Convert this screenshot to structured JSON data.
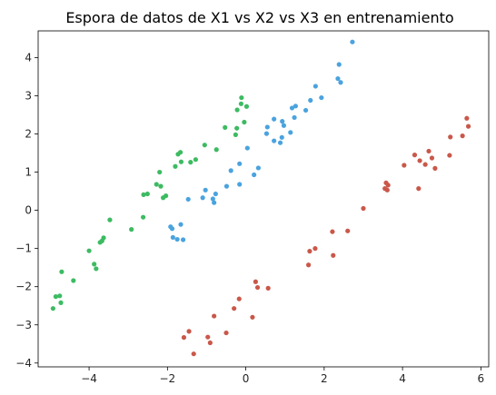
{
  "chart_data": {
    "type": "scatter",
    "title": "Espora de datos de X1 vs X2 vs X3 en entrenamiento",
    "xlabel": "",
    "ylabel": "",
    "xlim": [
      -5.3,
      6.2
    ],
    "ylim": [
      -4.1,
      4.7
    ],
    "xticks": [
      -4,
      -2,
      0,
      2,
      4,
      6
    ],
    "yticks": [
      -4,
      -3,
      -2,
      -1,
      0,
      1,
      2,
      3,
      4
    ],
    "grid": false,
    "legend": "none",
    "series": [
      {
        "color": "#4aa3df",
        "points": [
          [
            2.72,
            4.41
          ],
          [
            2.38,
            3.82
          ],
          [
            2.35,
            3.45
          ],
          [
            2.42,
            3.35
          ],
          [
            1.93,
            2.95
          ],
          [
            1.78,
            3.25
          ],
          [
            1.65,
            2.88
          ],
          [
            1.53,
            2.62
          ],
          [
            1.27,
            2.73
          ],
          [
            1.18,
            2.68
          ],
          [
            1.24,
            2.43
          ],
          [
            0.93,
            2.33
          ],
          [
            0.72,
            2.39
          ],
          [
            0.97,
            2.22
          ],
          [
            1.14,
            2.04
          ],
          [
            0.55,
            2.18
          ],
          [
            0.53,
            2.01
          ],
          [
            0.72,
            1.82
          ],
          [
            0.92,
            1.91
          ],
          [
            0.88,
            1.77
          ],
          [
            0.04,
            1.63
          ],
          [
            0.32,
            1.11
          ],
          [
            0.21,
            0.93
          ],
          [
            -0.16,
            1.22
          ],
          [
            -0.38,
            1.04
          ],
          [
            -0.49,
            0.63
          ],
          [
            -0.16,
            0.68
          ],
          [
            -0.77,
            0.43
          ],
          [
            -0.84,
            0.3
          ],
          [
            -0.81,
            0.2
          ],
          [
            -1.1,
            0.33
          ],
          [
            -1.47,
            0.29
          ],
          [
            -1.03,
            0.53
          ],
          [
            -1.66,
            -0.37
          ],
          [
            -1.92,
            -0.43
          ],
          [
            -1.88,
            -0.48
          ],
          [
            -1.86,
            -0.71
          ],
          [
            -1.75,
            -0.76
          ],
          [
            -1.6,
            -0.77
          ]
        ]
      },
      {
        "color": "#3dbb62",
        "points": [
          [
            -0.11,
            2.95
          ],
          [
            -0.12,
            2.79
          ],
          [
            0.02,
            2.72
          ],
          [
            -0.22,
            2.63
          ],
          [
            -0.53,
            2.17
          ],
          [
            -0.23,
            2.15
          ],
          [
            -0.04,
            2.31
          ],
          [
            -0.26,
            1.98
          ],
          [
            -0.75,
            1.59
          ],
          [
            -1.05,
            1.71
          ],
          [
            -1.28,
            1.33
          ],
          [
            -1.41,
            1.26
          ],
          [
            -1.67,
            1.52
          ],
          [
            -1.73,
            1.47
          ],
          [
            -1.65,
            1.27
          ],
          [
            -1.8,
            1.15
          ],
          [
            -2.2,
            1.0
          ],
          [
            -2.04,
            0.38
          ],
          [
            -2.11,
            0.33
          ],
          [
            -2.28,
            0.68
          ],
          [
            -2.17,
            0.63
          ],
          [
            -2.51,
            0.43
          ],
          [
            -2.62,
            -0.18
          ],
          [
            -2.92,
            -0.5
          ],
          [
            -2.61,
            0.41
          ],
          [
            -3.47,
            -0.25
          ],
          [
            -3.63,
            -0.72
          ],
          [
            -3.72,
            -0.84
          ],
          [
            -3.67,
            -0.8
          ],
          [
            -4.0,
            -1.06
          ],
          [
            -3.87,
            -1.41
          ],
          [
            -3.82,
            -1.53
          ],
          [
            -4.4,
            -1.84
          ],
          [
            -4.7,
            -1.61
          ],
          [
            -4.75,
            -2.24
          ],
          [
            -4.85,
            -2.26
          ],
          [
            -4.72,
            -2.42
          ],
          [
            -4.92,
            -2.57
          ]
        ]
      },
      {
        "color": "#c9584a",
        "points": [
          [
            5.64,
            2.41
          ],
          [
            5.68,
            2.2
          ],
          [
            5.53,
            1.95
          ],
          [
            5.22,
            1.92
          ],
          [
            5.2,
            1.44
          ],
          [
            4.67,
            1.55
          ],
          [
            4.75,
            1.37
          ],
          [
            4.83,
            1.1
          ],
          [
            4.58,
            1.2
          ],
          [
            4.44,
            1.3
          ],
          [
            4.31,
            1.45
          ],
          [
            4.04,
            1.18
          ],
          [
            4.41,
            0.57
          ],
          [
            3.61,
            0.53
          ],
          [
            3.55,
            0.57
          ],
          [
            3.63,
            0.66
          ],
          [
            3.58,
            0.72
          ],
          [
            3.0,
            0.05
          ],
          [
            2.6,
            -0.54
          ],
          [
            2.21,
            -0.56
          ],
          [
            2.23,
            -1.18
          ],
          [
            1.77,
            -1.0
          ],
          [
            1.63,
            -1.07
          ],
          [
            1.6,
            -1.43
          ],
          [
            0.25,
            -1.87
          ],
          [
            0.3,
            -2.02
          ],
          [
            0.57,
            -2.04
          ],
          [
            -0.17,
            -2.32
          ],
          [
            -0.3,
            -2.57
          ],
          [
            0.17,
            -2.8
          ],
          [
            -0.81,
            -2.77
          ],
          [
            -0.5,
            -3.21
          ],
          [
            -1.45,
            -3.17
          ],
          [
            -1.58,
            -3.33
          ],
          [
            -0.97,
            -3.32
          ],
          [
            -0.91,
            -3.47
          ],
          [
            -1.33,
            -3.76
          ]
        ]
      }
    ]
  }
}
